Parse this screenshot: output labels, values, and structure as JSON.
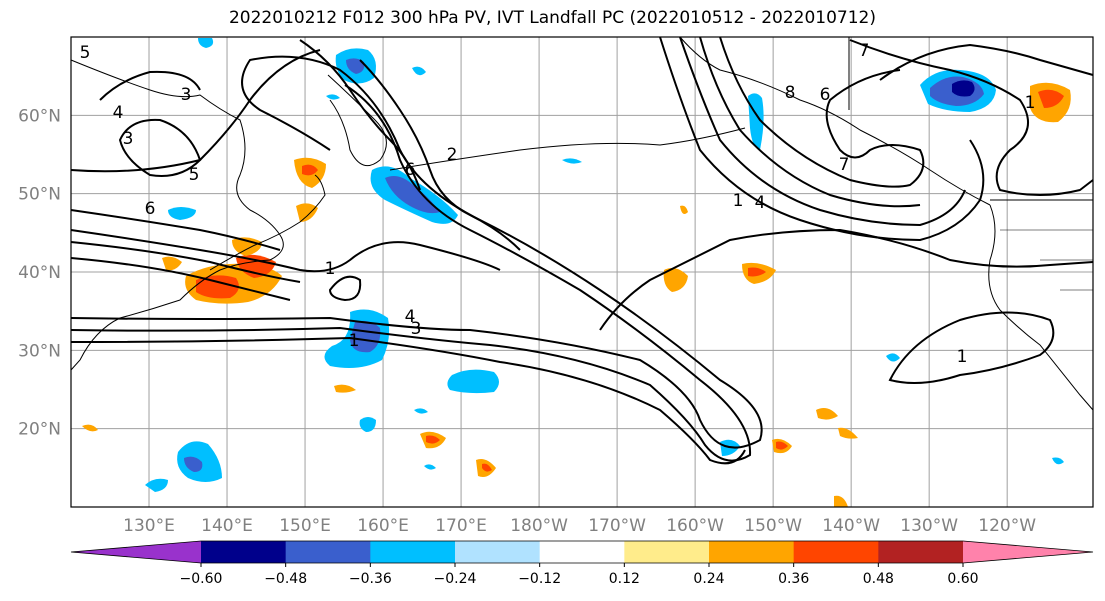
{
  "title": "2022010212 F012 300 hPa PV, IVT Landfall PC (2022010512 - 2022010712)",
  "map": {
    "lat_labels": [
      {
        "text": "60°N",
        "lat": 60
      },
      {
        "text": "50°N",
        "lat": 50
      },
      {
        "text": "40°N",
        "lat": 40
      },
      {
        "text": "30°N",
        "lat": 30
      },
      {
        "text": "20°N",
        "lat": 20
      }
    ],
    "lon_labels": [
      {
        "text": "130°E",
        "lon": 130
      },
      {
        "text": "140°E",
        "lon": 140
      },
      {
        "text": "150°E",
        "lon": 150
      },
      {
        "text": "160°E",
        "lon": 160
      },
      {
        "text": "170°E",
        "lon": 170
      },
      {
        "text": "180°W",
        "lon": 180
      },
      {
        "text": "170°W",
        "lon": 190
      },
      {
        "text": "160°W",
        "lon": 200
      },
      {
        "text": "150°W",
        "lon": 210
      },
      {
        "text": "140°W",
        "lon": 220
      },
      {
        "text": "130°W",
        "lon": 230
      },
      {
        "text": "120°W",
        "lon": 240
      }
    ],
    "lon_range": [
      120,
      251
    ],
    "lat_range": [
      10,
      70
    ],
    "grid": true,
    "contour_labels": [
      "5",
      "4",
      "3",
      "3",
      "5",
      "6",
      "1",
      "2",
      "6",
      "4",
      "3",
      "1",
      "7",
      "1",
      "4",
      "8",
      "6",
      "7",
      "1",
      "1"
    ]
  },
  "colorbar": {
    "ticks": [
      "−0.60",
      "−0.48",
      "−0.36",
      "−0.24",
      "−0.12",
      "0.12",
      "0.24",
      "0.36",
      "0.48",
      "0.60"
    ],
    "colors": [
      "#9932cc",
      "#00008b",
      "#3a5fcd",
      "#00bfff",
      "#b0e2ff",
      "#ffffff",
      "#ffec8b",
      "#ffa500",
      "#ff4500",
      "#b22222",
      "#ff82ab"
    ]
  }
}
